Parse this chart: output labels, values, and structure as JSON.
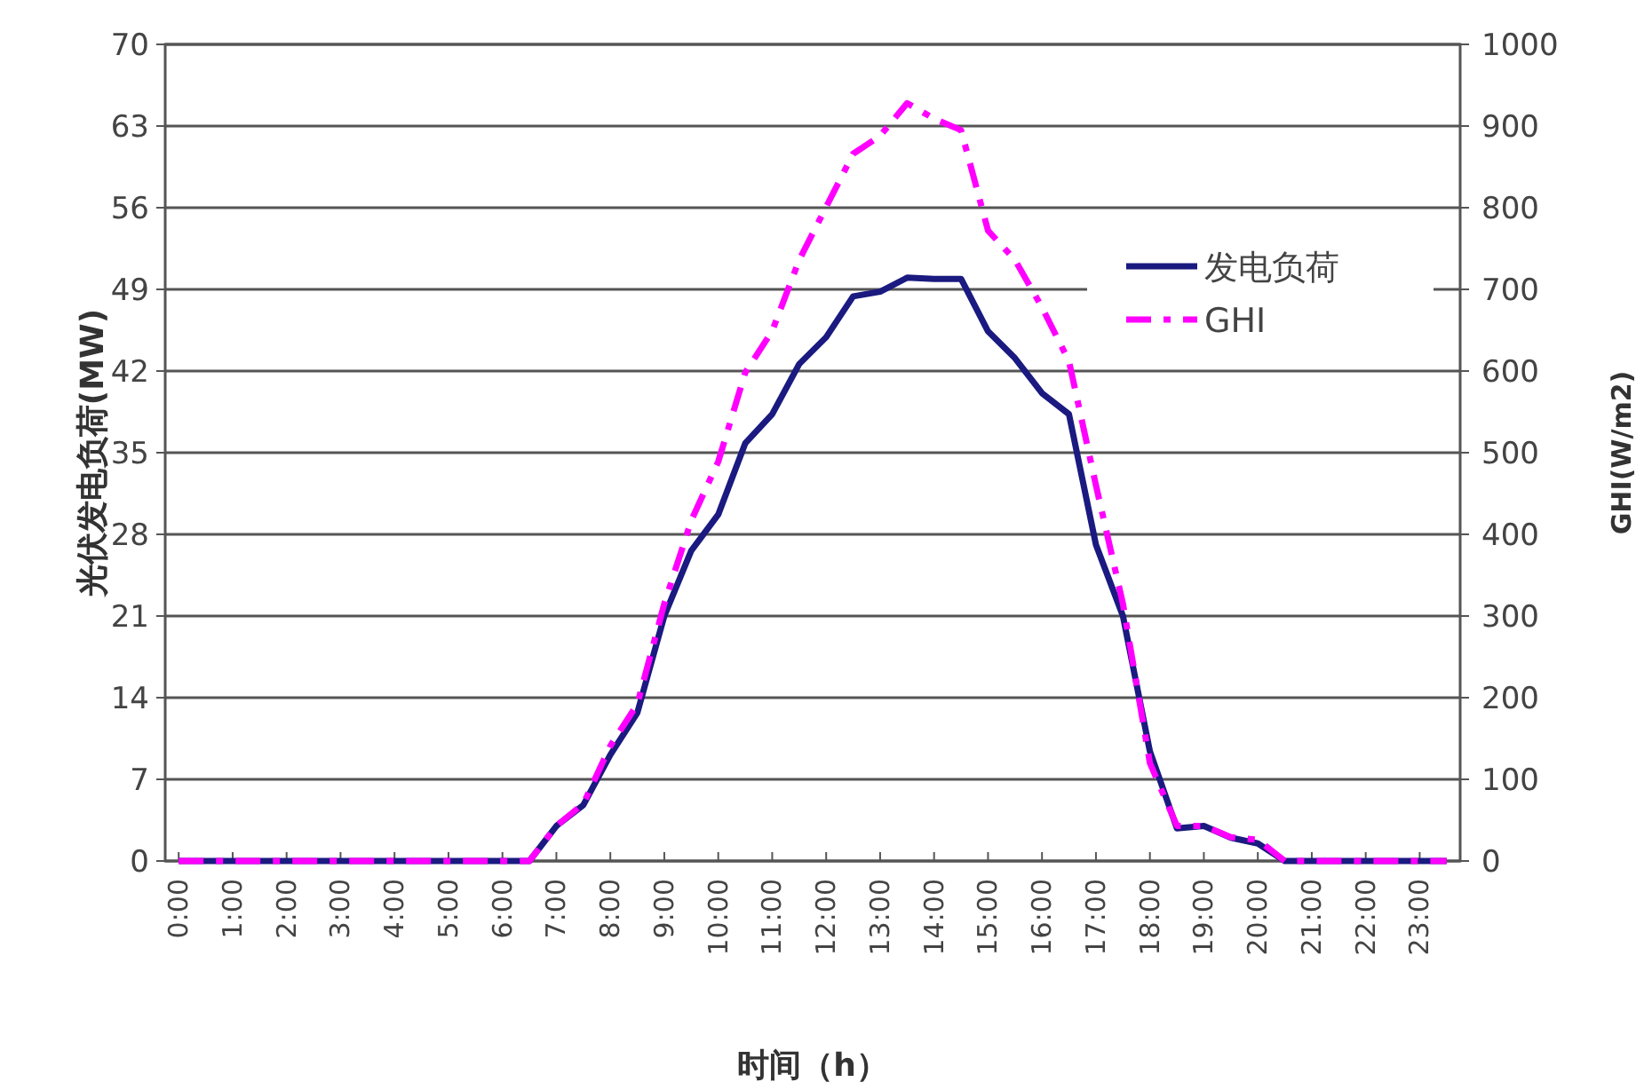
{
  "chart_data": {
    "type": "line",
    "xlabel": "时间（h）",
    "ylabel": "光伏发电负荷(MW)",
    "y2label": "GHI(W/m2)",
    "x": [
      0,
      0.5,
      1,
      1.5,
      2,
      2.5,
      3,
      3.5,
      4,
      4.5,
      5,
      5.5,
      6,
      6.5,
      7,
      7.5,
      8,
      8.5,
      9,
      9.5,
      10,
      10.5,
      11,
      11.5,
      12,
      12.5,
      13,
      13.5,
      14,
      14.5,
      15,
      15.5,
      16,
      16.5,
      17,
      17.5,
      18,
      18.5,
      19,
      19.5,
      20,
      20.5,
      21,
      21.5,
      22,
      22.5,
      23,
      23.5
    ],
    "xlim": [
      -0.25,
      23.75
    ],
    "xticks": [
      {
        "value": 0,
        "label": "0:00"
      },
      {
        "value": 1,
        "label": "1:00"
      },
      {
        "value": 2,
        "label": "2:00"
      },
      {
        "value": 3,
        "label": "3:00"
      },
      {
        "value": 4,
        "label": "4:00"
      },
      {
        "value": 5,
        "label": "5:00"
      },
      {
        "value": 6,
        "label": "6:00"
      },
      {
        "value": 7,
        "label": "7:00"
      },
      {
        "value": 8,
        "label": "8:00"
      },
      {
        "value": 9,
        "label": "9:00"
      },
      {
        "value": 10,
        "label": "10:00"
      },
      {
        "value": 11,
        "label": "11:00"
      },
      {
        "value": 12,
        "label": "12:00"
      },
      {
        "value": 13,
        "label": "13:00"
      },
      {
        "value": 14,
        "label": "14:00"
      },
      {
        "value": 15,
        "label": "15:00"
      },
      {
        "value": 16,
        "label": "16:00"
      },
      {
        "value": 17,
        "label": "17:00"
      },
      {
        "value": 18,
        "label": "18:00"
      },
      {
        "value": 19,
        "label": "19:00"
      },
      {
        "value": 20,
        "label": "20:00"
      },
      {
        "value": 21,
        "label": "21:00"
      },
      {
        "value": 22,
        "label": "22:00"
      },
      {
        "value": 23,
        "label": "23:00"
      }
    ],
    "ylim": [
      0,
      70
    ],
    "yticks": [
      0,
      7,
      14,
      21,
      28,
      35,
      42,
      49,
      56,
      63,
      70
    ],
    "y2lim": [
      0,
      1000
    ],
    "y2ticks": [
      0,
      100,
      200,
      300,
      400,
      500,
      600,
      700,
      800,
      900,
      1000
    ],
    "grid": "y",
    "legend": "right",
    "marker": "none",
    "series": [
      {
        "name": "发电负荷",
        "color": "#1a1a80",
        "line_style": "solid",
        "values": [
          0,
          0,
          0,
          0,
          0,
          0,
          0,
          0,
          0,
          0,
          0,
          0,
          0,
          0,
          3.0,
          4.8,
          9.1,
          12.7,
          21.0,
          26.6,
          29.7,
          35.8,
          38.3,
          42.6,
          44.9,
          48.4,
          48.8,
          50.0,
          49.9,
          49.9,
          45.4,
          43.1,
          40.1,
          38.3,
          27.1,
          21.0,
          9.4,
          2.8,
          3.0,
          2.0,
          1.5,
          0,
          0,
          0,
          0,
          0,
          0,
          0
        ]
      },
      {
        "name": "GHI",
        "color": "#ff00ff",
        "line_style": "dashdot",
        "axis": "y2",
        "values": [
          0,
          0,
          0,
          0,
          0,
          0,
          0,
          0,
          0,
          0,
          0,
          0,
          0,
          0,
          43,
          70,
          141,
          192,
          315,
          417,
          489,
          598,
          649,
          736,
          801,
          866,
          888,
          928,
          909,
          895,
          772,
          736,
          678,
          612,
          460,
          315,
          120,
          43,
          43,
          29,
          26,
          0,
          0,
          0,
          0,
          0,
          0,
          0
        ]
      }
    ]
  }
}
